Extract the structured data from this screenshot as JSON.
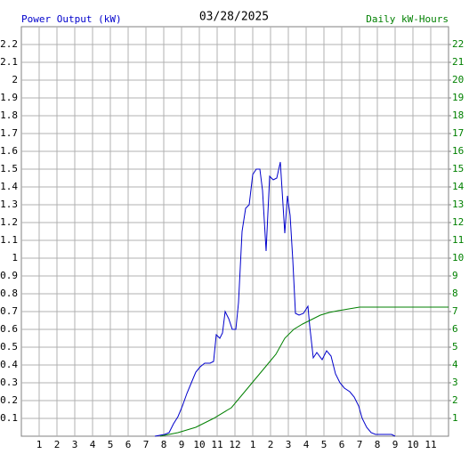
{
  "chart_data": {
    "type": "line",
    "title": "03/28/2025",
    "y_label": "Power Output (kW)",
    "y_label_color": "#0000cc",
    "y2_label": "Daily kW-Hours",
    "y2_label_color": "#008000",
    "xlim": [
      0,
      24
    ],
    "xticks": [
      1,
      2,
      3,
      4,
      5,
      6,
      7,
      8,
      9,
      10,
      11,
      12,
      {
        "value": 13,
        "label": "1"
      },
      {
        "value": 14,
        "label": "2"
      },
      {
        "value": 15,
        "label": "3"
      },
      {
        "value": 16,
        "label": "4"
      },
      {
        "value": 17,
        "label": "5"
      },
      {
        "value": 18,
        "label": "6"
      },
      {
        "value": 19,
        "label": "7"
      },
      {
        "value": 20,
        "label": "8"
      },
      {
        "value": 21,
        "label": "9"
      },
      {
        "value": 22,
        "label": "10"
      },
      {
        "value": 23,
        "label": "11"
      }
    ],
    "ylim": [
      0,
      2.3
    ],
    "yticks": [
      0.1,
      0.2,
      0.3,
      0.4,
      0.5,
      0.6,
      0.7,
      0.8,
      0.9,
      1.0,
      1.1,
      1.2,
      1.3,
      1.4,
      1.5,
      1.6,
      1.7,
      1.8,
      1.9,
      2.0,
      2.1,
      2.2
    ],
    "y2lim": [
      0,
      23
    ],
    "y2ticks": [
      1,
      2,
      3,
      4,
      5,
      6,
      7,
      8,
      9,
      10,
      11,
      12,
      13,
      14,
      15,
      16,
      17,
      18,
      19,
      20,
      21,
      22
    ],
    "grid": true,
    "series": [
      {
        "color": "#0000cc",
        "x": [
          7.5,
          8.05,
          8.3,
          8.55,
          8.8,
          9.05,
          9.3,
          9.55,
          9.8,
          10.05,
          10.3,
          10.6,
          10.8,
          10.95,
          11.15,
          11.3,
          11.45,
          11.65,
          11.85,
          12.05,
          12.2,
          12.4,
          12.6,
          12.8,
          13.0,
          13.2,
          13.4,
          13.55,
          13.75,
          13.95,
          14.15,
          14.35,
          14.55,
          14.7,
          14.8,
          14.95,
          15.1,
          15.25,
          15.4,
          15.6,
          15.85,
          16.1,
          16.2,
          16.4,
          16.6,
          16.9,
          17.15,
          17.4,
          17.65,
          17.9,
          18.15,
          18.45,
          18.7,
          18.95,
          19.15,
          19.4,
          19.65,
          19.9,
          20.8,
          21.0
        ],
        "values": [
          0,
          0.01,
          0.02,
          0.07,
          0.11,
          0.17,
          0.24,
          0.3,
          0.36,
          0.39,
          0.41,
          0.41,
          0.42,
          0.57,
          0.55,
          0.58,
          0.7,
          0.66,
          0.6,
          0.6,
          0.75,
          1.15,
          1.28,
          1.3,
          1.47,
          1.5,
          1.5,
          1.38,
          1.04,
          1.46,
          1.44,
          1.45,
          1.54,
          1.3,
          1.14,
          1.35,
          1.24,
          0.99,
          0.69,
          0.68,
          0.69,
          0.73,
          0.62,
          0.44,
          0.47,
          0.43,
          0.48,
          0.45,
          0.35,
          0.3,
          0.27,
          0.25,
          0.22,
          0.17,
          0.1,
          0.05,
          0.02,
          0.01,
          0.01,
          0
        ]
      },
      {
        "color": "#008000",
        "axis": "y2",
        "x": [
          7.8,
          8.8,
          9.8,
          10.8,
          11.8,
          12.55,
          13.05,
          13.8,
          14.3,
          14.8,
          15.3,
          15.8,
          16.3,
          16.8,
          17.3,
          17.8,
          18.4,
          19.0,
          24
        ],
        "values": [
          0,
          0.2,
          0.5,
          1.0,
          1.6,
          2.5,
          3.1,
          4.0,
          4.6,
          5.5,
          6.0,
          6.3,
          6.55,
          6.8,
          6.95,
          7.05,
          7.15,
          7.25,
          7.25
        ]
      }
    ]
  }
}
